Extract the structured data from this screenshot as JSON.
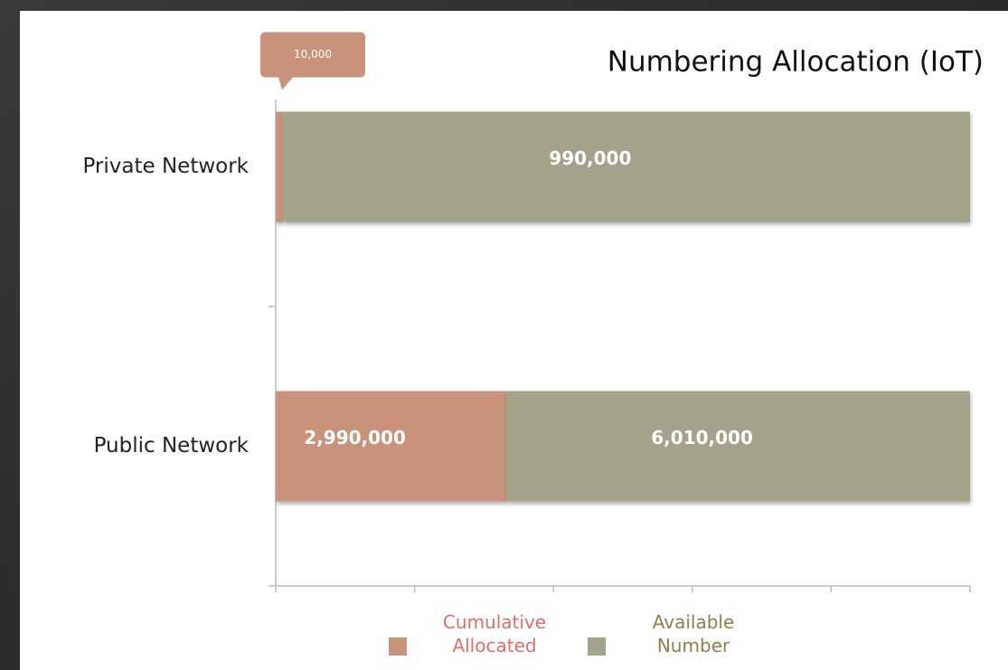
{
  "chart_data": {
    "type": "bar",
    "orientation": "horizontal",
    "stacked": "percent",
    "title": "Numbering Allocation (IoT)",
    "categories": [
      "Private Network",
      "Public Network"
    ],
    "series": [
      {
        "name": "Cumulative Allocated",
        "color": "#c8937a",
        "legend_text_color": "#e06c6c",
        "values": [
          10000,
          2990000
        ],
        "value_labels": [
          "10,000",
          "2,990,000"
        ]
      },
      {
        "name": "Available Number",
        "color": "#a3a38b",
        "legend_text_color": "#8f7d4c",
        "values": [
          990000,
          6010000
        ],
        "value_labels": [
          "990,000",
          "6,010,000"
        ]
      }
    ],
    "xlim": [
      0,
      100
    ],
    "xticks": [
      0,
      20,
      40,
      60,
      80,
      100
    ],
    "legend": "bottom"
  }
}
